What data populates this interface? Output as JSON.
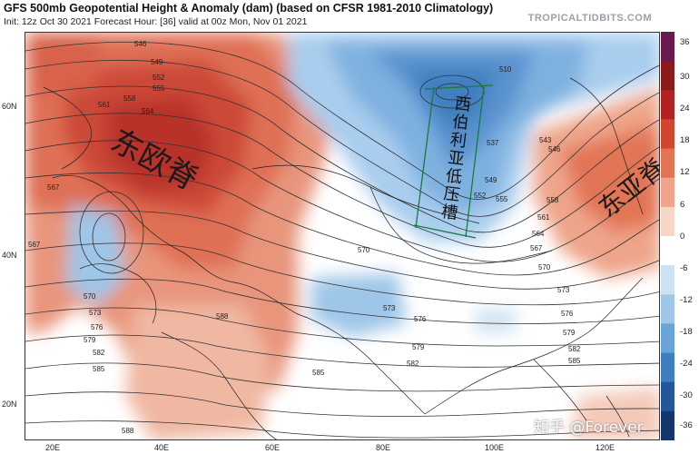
{
  "header": {
    "title": "GFS 500mb Geopotential Height & Anomaly (dam) (based on CFSR 1981-2010 Climatology)",
    "subtitle": "Init: 12z Oct 30 2021   Forecast Hour: [36]   valid at 00z Mon, Nov 01 2021",
    "brand": "TROPICALTIDBITS.COM"
  },
  "axes": {
    "lat_labels": [
      "60N",
      "40N",
      "20N"
    ],
    "lon_labels": [
      "20E",
      "40E",
      "60E",
      "80E",
      "100E",
      "120E"
    ]
  },
  "colorbar": {
    "labels": [
      "36",
      "30",
      "24",
      "18",
      "12",
      "6",
      "0",
      "-6",
      "-12",
      "-18",
      "-24",
      "-30",
      "-36"
    ],
    "colors": [
      "#6a1a4f",
      "#8b1a1a",
      "#b22222",
      "#d2452f",
      "#e27455",
      "#eea58a",
      "#f7d6c6",
      "#ffffff",
      "#cfe2f3",
      "#9ec6e8",
      "#6aa3d8",
      "#3f7fc0",
      "#24569c",
      "#15356e"
    ]
  },
  "contour_labels": [
    "546",
    "549",
    "552",
    "555",
    "558",
    "561",
    "564",
    "567",
    "567",
    "570",
    "570",
    "570",
    "573",
    "573",
    "573",
    "576",
    "576",
    "576",
    "579",
    "579",
    "579",
    "582",
    "582",
    "582",
    "585",
    "585",
    "585",
    "588",
    "588",
    "510",
    "537",
    "543",
    "546",
    "549",
    "552",
    "555",
    "558",
    "561",
    "564",
    "567",
    "570",
    "573",
    "576",
    "579",
    "582",
    "585"
  ],
  "annotations": {
    "east_europe_ridge": "东欧脊",
    "siberia_trough": "西伯利亚低压槽",
    "east_asia_ridge": "东亚脊"
  },
  "watermark": "知乎 @Forever",
  "palette": {
    "warm_strong": "#c0392b",
    "warm_mid": "#e0806a",
    "warm_light": "#f4c9b8",
    "cool_light": "#bcd7ef",
    "cool_mid": "#7fb1e0",
    "cool_strong": "#3f7fc0",
    "land_border": "#222222",
    "contour": "#333333"
  }
}
